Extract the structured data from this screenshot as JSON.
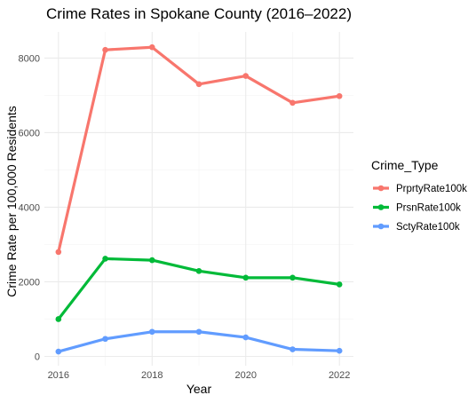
{
  "chart_data": {
    "type": "line",
    "title": "Crime Rates in Spokane County (2016–2022)",
    "xlabel": "Year",
    "ylabel": "Crime Rate per 100,000 Residents",
    "x": [
      2016,
      2017,
      2018,
      2019,
      2020,
      2021,
      2022
    ],
    "xlim": [
      2016,
      2022
    ],
    "ylim": [
      0,
      8300
    ],
    "x_ticks": [
      2016,
      2018,
      2020,
      2022
    ],
    "y_ticks": [
      0,
      2000,
      4000,
      6000,
      8000
    ],
    "grid": true,
    "legend_position": "right",
    "legend_title": "Crime_Type",
    "series": [
      {
        "name": "PrprtyRate100k",
        "color": "#F8766D",
        "values": [
          2800,
          8220,
          8290,
          7300,
          7520,
          6800,
          6980
        ]
      },
      {
        "name": "PrsnRate100k",
        "color": "#00BA38",
        "values": [
          1000,
          2620,
          2580,
          2290,
          2110,
          2110,
          1930
        ]
      },
      {
        "name": "SctyRate100k",
        "color": "#619CFF",
        "values": [
          130,
          470,
          660,
          660,
          510,
          190,
          150
        ]
      }
    ]
  }
}
